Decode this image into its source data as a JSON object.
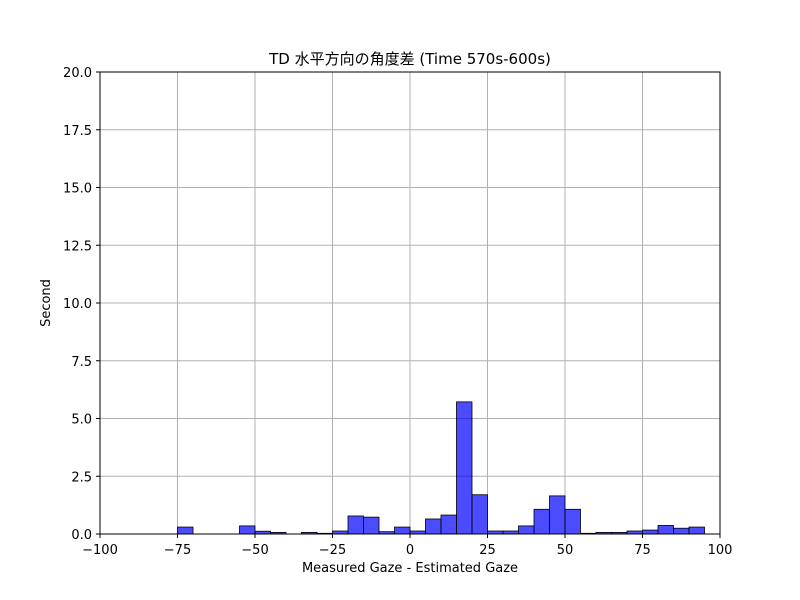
{
  "chart_data": {
    "type": "bar",
    "title": "TD 水平方向の角度差 (Time 570s-600s)",
    "xlabel": "Measured Gaze - Estimated Gaze",
    "ylabel": "Second",
    "xlim": [
      -100,
      100
    ],
    "ylim": [
      0,
      20
    ],
    "xticks": [
      -100,
      -75,
      -50,
      -25,
      0,
      25,
      50,
      75,
      100
    ],
    "xtick_labels": [
      "−100",
      "−75",
      "−50",
      "−25",
      "0",
      "25",
      "50",
      "75",
      "100"
    ],
    "yticks": [
      0,
      2.5,
      5,
      7.5,
      10,
      12.5,
      15,
      17.5,
      20
    ],
    "ytick_labels": [
      "0.0",
      "2.5",
      "5.0",
      "7.5",
      "10.0",
      "12.5",
      "15.0",
      "17.5",
      "20.0"
    ],
    "grid": true,
    "bar_color": "#0000ff",
    "bar_alpha": 0.7,
    "edge_color": "#000000",
    "bins": [
      {
        "x0": -75,
        "x1": -70,
        "value": 0.3
      },
      {
        "x0": -55,
        "x1": -50,
        "value": 0.35
      },
      {
        "x0": -50,
        "x1": -45,
        "value": 0.12
      },
      {
        "x0": -45,
        "x1": -40,
        "value": 0.07
      },
      {
        "x0": -35,
        "x1": -30,
        "value": 0.07
      },
      {
        "x0": -30,
        "x1": -25,
        "value": 0.03
      },
      {
        "x0": -25,
        "x1": -20,
        "value": 0.13
      },
      {
        "x0": -20,
        "x1": -15,
        "value": 0.78
      },
      {
        "x0": -15,
        "x1": -10,
        "value": 0.73
      },
      {
        "x0": -10,
        "x1": -5,
        "value": 0.1
      },
      {
        "x0": -5,
        "x1": 0,
        "value": 0.3
      },
      {
        "x0": 0,
        "x1": 5,
        "value": 0.13
      },
      {
        "x0": 5,
        "x1": 10,
        "value": 0.65
      },
      {
        "x0": 10,
        "x1": 15,
        "value": 0.82
      },
      {
        "x0": 15,
        "x1": 20,
        "value": 5.72
      },
      {
        "x0": 20,
        "x1": 25,
        "value": 1.7
      },
      {
        "x0": 25,
        "x1": 30,
        "value": 0.13
      },
      {
        "x0": 30,
        "x1": 35,
        "value": 0.13
      },
      {
        "x0": 35,
        "x1": 40,
        "value": 0.35
      },
      {
        "x0": 40,
        "x1": 45,
        "value": 1.07
      },
      {
        "x0": 45,
        "x1": 50,
        "value": 1.65
      },
      {
        "x0": 50,
        "x1": 55,
        "value": 1.07
      },
      {
        "x0": 55,
        "x1": 60,
        "value": 0.03
      },
      {
        "x0": 60,
        "x1": 65,
        "value": 0.07
      },
      {
        "x0": 65,
        "x1": 70,
        "value": 0.07
      },
      {
        "x0": 70,
        "x1": 75,
        "value": 0.13
      },
      {
        "x0": 75,
        "x1": 80,
        "value": 0.17
      },
      {
        "x0": 80,
        "x1": 85,
        "value": 0.37
      },
      {
        "x0": 85,
        "x1": 90,
        "value": 0.25
      },
      {
        "x0": 90,
        "x1": 95,
        "value": 0.3
      }
    ]
  }
}
